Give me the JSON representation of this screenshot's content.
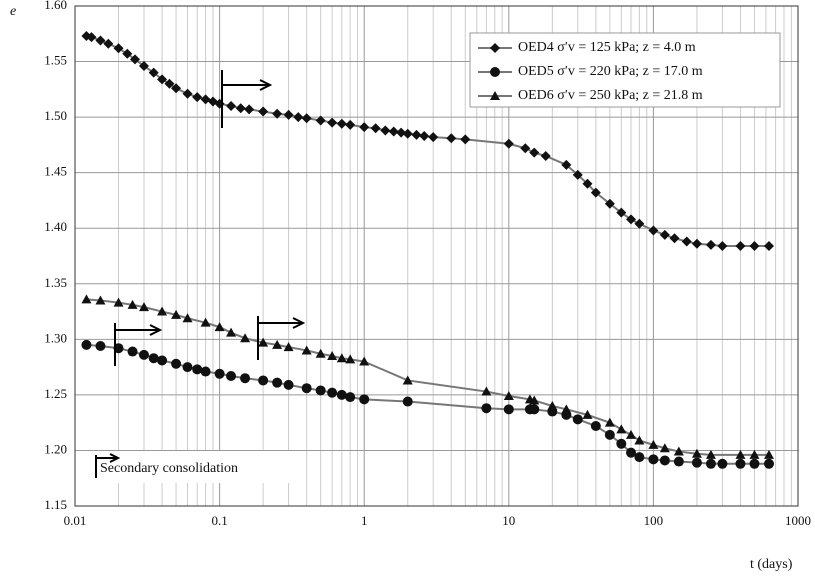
{
  "chart_data": {
    "type": "scatter-line",
    "x_label": "t (days)",
    "y_label": "e",
    "annotation": "Secondary consolidation",
    "xlog": true,
    "xlim": [
      0.01,
      1000
    ],
    "xticks": [
      0.01,
      0.1,
      1,
      10,
      100,
      1000
    ],
    "ylim": [
      1.15,
      1.6
    ],
    "yticks": [
      1.15,
      {
        "value": 1.2,
        "label": "1.20"
      },
      1.25,
      {
        "value": 1.3,
        "label": "1.30"
      },
      1.35,
      {
        "value": 1.4,
        "label": "1.40"
      },
      1.45,
      {
        "value": 1.5,
        "label": "1.50"
      },
      1.55,
      {
        "value": 1.6,
        "label": "1.60"
      }
    ],
    "grid": true,
    "minor_grid": true,
    "legend": "upper right",
    "line_color": "#777777",
    "series": [
      {
        "name": "OED4 σ′v = 125 kPa; z = 4.0 m",
        "marker": "diamond",
        "color": "#111111",
        "x": [
          0.012,
          0.013,
          0.015,
          0.017,
          0.02,
          0.023,
          0.026,
          0.03,
          0.035,
          0.04,
          0.045,
          0.05,
          0.06,
          0.07,
          0.08,
          0.09,
          0.1,
          0.12,
          0.14,
          0.16,
          0.2,
          0.25,
          0.3,
          0.35,
          0.4,
          0.5,
          0.6,
          0.7,
          0.8,
          1,
          1.2,
          1.4,
          1.6,
          1.8,
          2,
          2.3,
          2.6,
          3,
          4,
          5,
          10,
          13,
          15,
          18,
          25,
          30,
          35,
          40,
          50,
          60,
          70,
          80,
          100,
          120,
          140,
          170,
          200,
          250,
          300,
          400,
          500,
          630
        ],
        "values": [
          1.573,
          1.572,
          1.569,
          1.566,
          1.562,
          1.557,
          1.552,
          1.546,
          1.54,
          1.534,
          1.53,
          1.526,
          1.521,
          1.518,
          1.516,
          1.514,
          1.512,
          1.51,
          1.508,
          1.507,
          1.505,
          1.503,
          1.502,
          1.5,
          1.499,
          1.497,
          1.495,
          1.494,
          1.493,
          1.491,
          1.49,
          1.488,
          1.487,
          1.486,
          1.485,
          1.484,
          1.483,
          1.482,
          1.481,
          1.48,
          1.476,
          1.472,
          1.468,
          1.465,
          1.457,
          1.448,
          1.44,
          1.432,
          1.422,
          1.414,
          1.408,
          1.404,
          1.398,
          1.394,
          1.391,
          1.388,
          1.386,
          1.385,
          1.384,
          1.384,
          1.384,
          1.384
        ]
      },
      {
        "name": "OED5 σ′v = 220 kPa; z = 17.0 m",
        "marker": "circle",
        "color": "#111111",
        "x": [
          0.012,
          0.015,
          0.02,
          0.025,
          0.03,
          0.035,
          0.04,
          0.05,
          0.06,
          0.07,
          0.08,
          0.1,
          0.12,
          0.15,
          0.2,
          0.25,
          0.3,
          0.4,
          0.5,
          0.6,
          0.7,
          0.8,
          1,
          2,
          7,
          10,
          14,
          15,
          20,
          25,
          30,
          40,
          50,
          60,
          70,
          80,
          100,
          120,
          150,
          200,
          250,
          300,
          400,
          500,
          630
        ],
        "values": [
          1.295,
          1.294,
          1.292,
          1.289,
          1.286,
          1.283,
          1.281,
          1.278,
          1.275,
          1.273,
          1.271,
          1.269,
          1.267,
          1.265,
          1.263,
          1.261,
          1.259,
          1.256,
          1.254,
          1.252,
          1.25,
          1.248,
          1.246,
          1.244,
          1.238,
          1.237,
          1.237,
          1.237,
          1.235,
          1.232,
          1.228,
          1.222,
          1.214,
          1.206,
          1.198,
          1.194,
          1.192,
          1.191,
          1.19,
          1.189,
          1.188,
          1.188,
          1.188,
          1.188,
          1.188
        ]
      },
      {
        "name": "OED6 σ′v = 250 kPa; z = 21.8 m",
        "marker": "triangle",
        "color": "#111111",
        "x": [
          0.012,
          0.015,
          0.02,
          0.025,
          0.03,
          0.04,
          0.05,
          0.06,
          0.08,
          0.1,
          0.12,
          0.15,
          0.2,
          0.25,
          0.3,
          0.4,
          0.5,
          0.6,
          0.7,
          0.8,
          1,
          2,
          7,
          10,
          14,
          15,
          20,
          25,
          35,
          50,
          60,
          70,
          80,
          100,
          120,
          150,
          200,
          250,
          400,
          500,
          630
        ],
        "values": [
          1.336,
          1.335,
          1.333,
          1.331,
          1.329,
          1.325,
          1.322,
          1.319,
          1.315,
          1.311,
          1.306,
          1.301,
          1.297,
          1.295,
          1.293,
          1.29,
          1.287,
          1.285,
          1.283,
          1.282,
          1.28,
          1.263,
          1.253,
          1.249,
          1.246,
          1.245,
          1.24,
          1.237,
          1.232,
          1.225,
          1.219,
          1.214,
          1.209,
          1.205,
          1.202,
          1.199,
          1.197,
          1.196,
          1.196,
          1.196,
          1.196
        ]
      }
    ]
  }
}
